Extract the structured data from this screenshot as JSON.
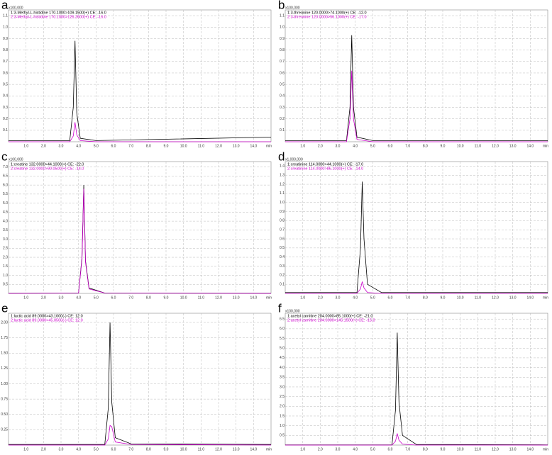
{
  "chart_data": [
    {
      "type": "line",
      "label": "a",
      "scale_label": "x100,000",
      "x_unit": "min",
      "x": [
        0,
        3.5,
        3.7,
        3.8,
        3.9,
        4.1,
        5,
        15
      ],
      "series": [
        {
          "name": "1:3-Methyl-L-histidine 170.1000>109.1500(+) CE: -16.0",
          "color": "#000000",
          "values": [
            0.01,
            0.01,
            0.3,
            0.88,
            0.25,
            0.03,
            0.01,
            0.04
          ]
        },
        {
          "name": "2:3-Methyl-L-histidine 170.1000>126.2600(+) CE: -16.0",
          "color": "#cc00cc",
          "values": [
            0,
            0,
            0.05,
            0.17,
            0.06,
            0.01,
            0,
            0
          ]
        }
      ],
      "xlim": [
        0,
        15
      ],
      "ylim": [
        0,
        1.15
      ],
      "xticks": [
        {
          "value": 1,
          "label": "1.0"
        },
        {
          "value": 2,
          "label": "2.0"
        },
        {
          "value": 3,
          "label": "3.0"
        },
        {
          "value": 4,
          "label": "4.0"
        },
        {
          "value": 5,
          "label": "5.0"
        },
        {
          "value": 6,
          "label": "6.0"
        },
        {
          "value": 7,
          "label": "7.0"
        },
        {
          "value": 8,
          "label": "8.0"
        },
        {
          "value": 9,
          "label": "9.0"
        },
        {
          "value": 10,
          "label": "10.0"
        },
        {
          "value": 11,
          "label": "11.0"
        },
        {
          "value": 12,
          "label": "12.0"
        },
        {
          "value": 13,
          "label": "13.0"
        },
        {
          "value": 14,
          "label": "14.0"
        }
      ],
      "yticks": [
        0.1,
        0.2,
        0.3,
        0.4,
        0.5,
        0.6,
        0.7,
        0.8,
        0.9,
        {
          "value": 1,
          "label": "1.0"
        },
        1.1
      ],
      "grid": true
    },
    {
      "type": "line",
      "label": "b",
      "scale_label": "x100,000",
      "x_unit": "min",
      "x": [
        0,
        3.5,
        3.7,
        3.8,
        3.9,
        4.1,
        5,
        15
      ],
      "series": [
        {
          "name": "1:3-threonine 120.0000>74.1000(+) CE: -12.0",
          "color": "#000000",
          "values": [
            0.01,
            0.01,
            0.3,
            0.93,
            0.3,
            0.04,
            0.01,
            0.01
          ]
        },
        {
          "name": "2:3-threonine 120.0000>56.1000(+) CE: -17.0",
          "color": "#cc00cc",
          "values": [
            0,
            0,
            0.2,
            0.62,
            0.2,
            0.02,
            0,
            0
          ]
        }
      ],
      "xlim": [
        0,
        15
      ],
      "ylim": [
        0,
        1.15
      ],
      "xticks": [
        {
          "value": 1,
          "label": "1.0"
        },
        {
          "value": 2,
          "label": "2.0"
        },
        {
          "value": 3,
          "label": "3.0"
        },
        {
          "value": 4,
          "label": "4.0"
        },
        {
          "value": 5,
          "label": "5.0"
        },
        {
          "value": 6,
          "label": "6.0"
        },
        {
          "value": 7,
          "label": "7.0"
        },
        {
          "value": 8,
          "label": "8.0"
        },
        {
          "value": 9,
          "label": "9.0"
        },
        {
          "value": 10,
          "label": "10.0"
        },
        {
          "value": 11,
          "label": "11.0"
        },
        {
          "value": 12,
          "label": "12.0"
        },
        {
          "value": 13,
          "label": "13.0"
        },
        {
          "value": 14,
          "label": "14.0"
        }
      ],
      "yticks": [
        0.1,
        0.2,
        0.3,
        0.4,
        0.5,
        0.6,
        0.7,
        0.8,
        0.9,
        {
          "value": 1,
          "label": "1.0"
        },
        1.1
      ],
      "grid": true
    },
    {
      "type": "line",
      "label": "c",
      "scale_label": "x100,000",
      "x_unit": "min",
      "x": [
        0,
        4.0,
        4.2,
        4.3,
        4.4,
        4.6,
        5.5,
        15
      ],
      "series": [
        {
          "name": "1:creatine 132.0000>44.1000(+) CE: -22.0",
          "color": "#000000",
          "values": [
            0.01,
            0.02,
            2.0,
            6.0,
            1.8,
            0.3,
            0.02,
            0.01
          ]
        },
        {
          "name": "2:creatine 132.0000>90.0500(+) CE: -14.0",
          "color": "#cc00cc",
          "values": [
            0,
            0.02,
            1.9,
            5.8,
            1.7,
            0.25,
            0.02,
            0
          ]
        }
      ],
      "xlim": [
        0,
        15
      ],
      "ylim": [
        0,
        7.3
      ],
      "xticks": [
        {
          "value": 1,
          "label": "1.0"
        },
        {
          "value": 2,
          "label": "2.0"
        },
        {
          "value": 3,
          "label": "3.0"
        },
        {
          "value": 4,
          "label": "4.0"
        },
        {
          "value": 5,
          "label": "5.0"
        },
        {
          "value": 6,
          "label": "6.0"
        },
        {
          "value": 7,
          "label": "7.0"
        },
        {
          "value": 8,
          "label": "8.0"
        },
        {
          "value": 9,
          "label": "9.0"
        },
        {
          "value": 10,
          "label": "10.0"
        },
        {
          "value": 11,
          "label": "11.0"
        },
        {
          "value": 12,
          "label": "12.0"
        },
        {
          "value": 13,
          "label": "13.0"
        },
        {
          "value": 14,
          "label": "14.0"
        }
      ],
      "yticks": [
        0.5,
        {
          "value": 1,
          "label": "1.0"
        },
        1.5,
        {
          "value": 2,
          "label": "2.0"
        },
        2.5,
        {
          "value": 3,
          "label": "3.0"
        },
        3.5,
        {
          "value": 4,
          "label": "4.0"
        },
        4.5,
        {
          "value": 5,
          "label": "5.0"
        },
        5.5,
        {
          "value": 6,
          "label": "6.0"
        },
        6.5,
        {
          "value": 7,
          "label": "7.0"
        }
      ],
      "grid": true
    },
    {
      "type": "line",
      "label": "d",
      "scale_label": "x1,000,000",
      "x_unit": "min",
      "x": [
        0,
        4.1,
        4.3,
        4.4,
        4.5,
        4.7,
        5.5,
        15
      ],
      "series": [
        {
          "name": "1:creatinine 114.0000>44.1000(+) CE: -17.0",
          "color": "#000000",
          "values": [
            0.01,
            0.01,
            0.5,
            1.23,
            0.6,
            0.1,
            0.01,
            0.01
          ]
        },
        {
          "name": "2:creatinine 114.0000>86.1000(+) CE: -14.0",
          "color": "#cc00cc",
          "values": [
            0,
            0,
            0.05,
            0.13,
            0.06,
            0.01,
            0,
            0
          ]
        }
      ],
      "xlim": [
        0,
        15
      ],
      "ylim": [
        0,
        1.45
      ],
      "xticks": [
        {
          "value": 1,
          "label": "1.0"
        },
        {
          "value": 2,
          "label": "2.0"
        },
        {
          "value": 3,
          "label": "3.0"
        },
        {
          "value": 4,
          "label": "4.0"
        },
        {
          "value": 5,
          "label": "5.0"
        },
        {
          "value": 6,
          "label": "6.0"
        },
        {
          "value": 7,
          "label": "7.0"
        },
        {
          "value": 8,
          "label": "8.0"
        },
        {
          "value": 9,
          "label": "9.0"
        },
        {
          "value": 10,
          "label": "10.0"
        },
        {
          "value": 11,
          "label": "11.0"
        },
        {
          "value": 12,
          "label": "12.0"
        },
        {
          "value": 13,
          "label": "13.0"
        },
        {
          "value": 14,
          "label": "14.0"
        }
      ],
      "yticks": [
        0.1,
        0.2,
        0.3,
        0.4,
        0.5,
        0.6,
        0.7,
        0.8,
        0.9,
        {
          "value": 1,
          "label": "1.0"
        },
        1.1,
        1.2,
        1.3,
        1.4
      ],
      "grid": true
    },
    {
      "type": "line",
      "label": "e",
      "x_unit": "min",
      "x": [
        0,
        5.5,
        5.7,
        5.8,
        5.9,
        6.1,
        7,
        15
      ],
      "series": [
        {
          "name": "1:lactic acid 89.0000>43.1000(-) CE: 12.0",
          "color": "#000000",
          "values": [
            0.01,
            0.01,
            0.6,
            2.0,
            0.7,
            0.12,
            0.02,
            0.01
          ]
        },
        {
          "name": "2:lactic acid 89.0000>45.0500(-) CE: 12.0",
          "color": "#cc00cc",
          "values": [
            0,
            0,
            0.1,
            0.32,
            0.3,
            0.05,
            0.01,
            0
          ]
        }
      ],
      "xlim": [
        0,
        15
      ],
      "ylim": [
        0,
        2.15
      ],
      "xticks": [
        {
          "value": 1,
          "label": "1.0"
        },
        {
          "value": 2,
          "label": "2.0"
        },
        {
          "value": 3,
          "label": "3.0"
        },
        {
          "value": 4,
          "label": "4.0"
        },
        {
          "value": 5,
          "label": "5.0"
        },
        {
          "value": 6,
          "label": "6.0"
        },
        {
          "value": 7,
          "label": "7.0"
        },
        {
          "value": 8,
          "label": "8.0"
        },
        {
          "value": 9,
          "label": "9.0"
        },
        {
          "value": 10,
          "label": "10.0"
        },
        {
          "value": 11,
          "label": "11.0"
        },
        {
          "value": 12,
          "label": "12.0"
        },
        {
          "value": 13,
          "label": "13.0"
        },
        {
          "value": 14,
          "label": "14.0"
        }
      ],
      "yticks": [
        0.25,
        {
          "value": 0.5,
          "label": "0.50"
        },
        0.75,
        {
          "value": 1,
          "label": "1.00"
        },
        1.25,
        {
          "value": 1.5,
          "label": "1.50"
        },
        1.75,
        {
          "value": 2,
          "label": "2.00"
        }
      ],
      "grid": true
    },
    {
      "type": "line",
      "label": "f",
      "scale_label": "x100,000",
      "x_unit": "min",
      "x": [
        0,
        6.1,
        6.3,
        6.4,
        6.5,
        6.7,
        7.5,
        15
      ],
      "series": [
        {
          "name": "1:acetyl carnitine 204.0000>85.1000(+) CE: -21.0",
          "color": "#000000",
          "values": [
            0.01,
            0.01,
            1.8,
            5.8,
            2.2,
            0.5,
            0.03,
            0.01
          ]
        },
        {
          "name": "2:acetyl carnitine 204.0000>145.1500(+) CE: -15.0",
          "color": "#cc00cc",
          "values": [
            0,
            0,
            0.2,
            0.6,
            0.25,
            0.05,
            0,
            0
          ]
        }
      ],
      "xlim": [
        0,
        15
      ],
      "ylim": [
        0,
        6.8
      ],
      "xticks": [
        {
          "value": 1,
          "label": "1.0"
        },
        {
          "value": 2,
          "label": "2.0"
        },
        {
          "value": 3,
          "label": "3.0"
        },
        {
          "value": 4,
          "label": "4.0"
        },
        {
          "value": 5,
          "label": "5.0"
        },
        {
          "value": 6,
          "label": "6.0"
        },
        {
          "value": 7,
          "label": "7.0"
        },
        {
          "value": 8,
          "label": "8.0"
        },
        {
          "value": 9,
          "label": "9.0"
        },
        {
          "value": 10,
          "label": "10.0"
        },
        {
          "value": 11,
          "label": "11.0"
        },
        {
          "value": 12,
          "label": "12.0"
        },
        {
          "value": 13,
          "label": "13.0"
        },
        {
          "value": 14,
          "label": "14.0"
        }
      ],
      "yticks": [
        0.5,
        {
          "value": 1,
          "label": "1.0"
        },
        1.5,
        {
          "value": 2,
          "label": "2.0"
        },
        2.5,
        {
          "value": 3,
          "label": "3.0"
        },
        3.5,
        {
          "value": 4,
          "label": "4.0"
        },
        4.5,
        {
          "value": 5,
          "label": "5.0"
        },
        5.5,
        {
          "value": 6,
          "label": "6.0"
        },
        6.5
      ],
      "grid": true
    }
  ]
}
